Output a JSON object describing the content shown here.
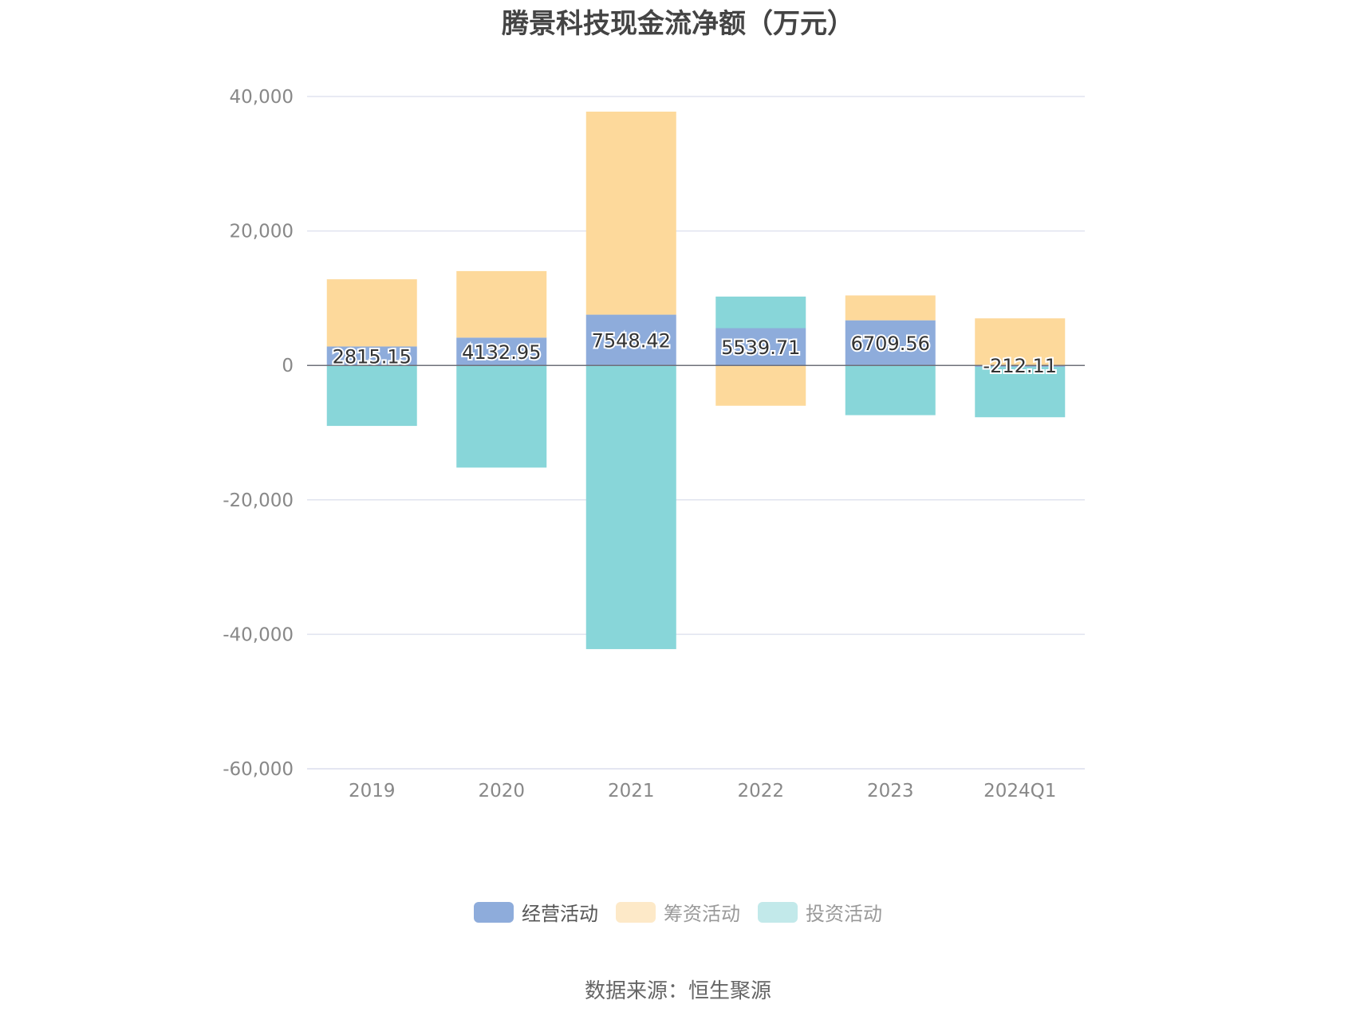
{
  "chart_data": {
    "type": "bar",
    "stacked": true,
    "title": "腾景科技现金流净额（万元）",
    "categories": [
      "2019",
      "2020",
      "2021",
      "2022",
      "2023",
      "2024Q1"
    ],
    "ylim": [
      -60000,
      40000
    ],
    "yticks": [
      40000,
      20000,
      0,
      -20000,
      -40000,
      -60000
    ],
    "ytick_labels": [
      "40,000",
      "20,000",
      "0",
      "-20,000",
      "-40,000",
      "-60,000"
    ],
    "series": [
      {
        "name": "经营活动",
        "color": "#8eacdb",
        "values": [
          2815.15,
          4132.95,
          7548.42,
          5539.71,
          6709.56,
          -212.11
        ],
        "labels": [
          "2815.15",
          "4132.95",
          "7548.42",
          "5539.71",
          "6709.56",
          "-212.11"
        ]
      },
      {
        "name": "筹资活动",
        "color": "#fdd99b",
        "values": [
          10000,
          9900,
          30200,
          -6000,
          3700,
          7000
        ]
      },
      {
        "name": "投资活动",
        "color": "#88d6d9",
        "values": [
          -9000,
          -15200,
          -42200,
          4700,
          -7400,
          -7500
        ]
      }
    ],
    "legend_position": "bottom",
    "grid": true
  },
  "legend": {
    "items": [
      {
        "label": "经营活动",
        "color": "#8eacdb",
        "state": "active"
      },
      {
        "label": "筹资活动",
        "color": "#fde9c8",
        "state": "inactive"
      },
      {
        "label": "投资活动",
        "color": "#c2e9ea",
        "state": "inactive"
      }
    ]
  },
  "source": "数据来源：恒生聚源"
}
